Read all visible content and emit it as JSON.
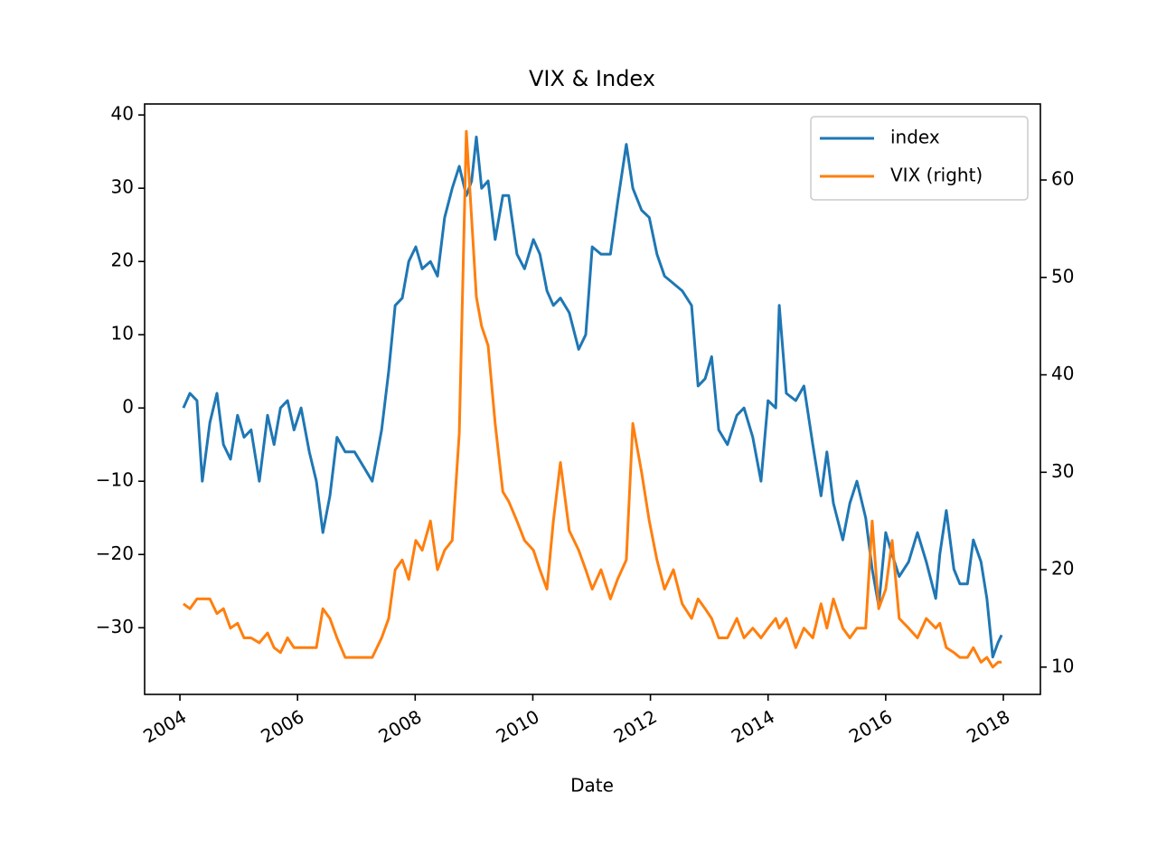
{
  "chart_data": {
    "type": "line",
    "title": "VIX & Index",
    "xlabel": "Date",
    "x": [
      2004.06,
      2004.17,
      2004.29,
      2004.38,
      2004.51,
      2004.63,
      2004.74,
      2004.86,
      2004.98,
      2005.09,
      2005.21,
      2005.35,
      2005.49,
      2005.6,
      2005.71,
      2005.83,
      2005.94,
      2006.06,
      2006.2,
      2006.32,
      2006.43,
      2006.55,
      2006.67,
      2006.81,
      2006.97,
      2007.12,
      2007.27,
      2007.43,
      2007.55,
      2007.66,
      2007.78,
      2007.89,
      2008.01,
      2008.12,
      2008.26,
      2008.38,
      2008.5,
      2008.63,
      2008.75,
      2008.87,
      2008.96,
      2009.04,
      2009.13,
      2009.24,
      2009.36,
      2009.49,
      2009.59,
      2009.73,
      2009.86,
      2010.01,
      2010.12,
      2010.24,
      2010.35,
      2010.47,
      2010.62,
      2010.78,
      2010.9,
      2011.01,
      2011.16,
      2011.32,
      2011.44,
      2011.59,
      2011.7,
      2011.85,
      2011.98,
      2012.11,
      2012.24,
      2012.39,
      2012.54,
      2012.7,
      2012.81,
      2012.93,
      2013.04,
      2013.16,
      2013.31,
      2013.47,
      2013.59,
      2013.74,
      2013.88,
      2014.0,
      2014.13,
      2014.19,
      2014.31,
      2014.47,
      2014.61,
      2014.76,
      2014.9,
      2015.0,
      2015.11,
      2015.27,
      2015.39,
      2015.51,
      2015.66,
      2015.77,
      2015.88,
      2016.0,
      2016.11,
      2016.23,
      2016.39,
      2016.54,
      2016.69,
      2016.85,
      2016.92,
      2017.03,
      2017.16,
      2017.26,
      2017.39,
      2017.49,
      2017.62,
      2017.72,
      2017.82,
      2017.91,
      2017.97
    ],
    "series": [
      {
        "name": "index",
        "color": "#1f77b4",
        "values": [
          0,
          2,
          1,
          -10,
          -2,
          2,
          -5,
          -7,
          -1,
          -4,
          -3,
          -10,
          -1,
          -5,
          0,
          1,
          -3,
          0,
          -6,
          -10,
          -17,
          -12,
          -4,
          -6,
          -6,
          -8,
          -10,
          -3,
          5,
          14,
          15,
          20,
          22,
          19,
          20,
          18,
          26,
          30,
          33,
          29,
          31,
          37,
          30,
          31,
          23,
          29,
          29,
          21,
          19,
          23,
          21,
          16,
          14,
          15,
          13,
          8,
          10,
          22,
          21,
          21,
          28,
          36,
          30,
          27,
          26,
          21,
          18,
          17,
          16,
          14,
          3,
          4,
          7,
          -3,
          -5,
          -1,
          0,
          -4,
          -10,
          1,
          0,
          14,
          2,
          1,
          3,
          -5,
          -12,
          -6,
          -13,
          -18,
          -13,
          -10,
          -15,
          -22,
          -27,
          -17,
          -20,
          -23,
          -21,
          -17,
          -21,
          -26,
          -20,
          -14,
          -22,
          -24,
          -24,
          -18,
          -21,
          -26,
          -34,
          -32,
          -31
        ]
      },
      {
        "name": "VIX (right)",
        "color": "#ff7f0e",
        "axis": "y2",
        "values": [
          16.5,
          16,
          17,
          17,
          17,
          15.5,
          16,
          14,
          14.5,
          13,
          13,
          12.5,
          13.5,
          12,
          11.5,
          13,
          12,
          12,
          12,
          12,
          16,
          15,
          13,
          11,
          11,
          11,
          11,
          13,
          15,
          20,
          21,
          19,
          23,
          22,
          25,
          20,
          22,
          23,
          34,
          65,
          56,
          48,
          45,
          43,
          35,
          28,
          27,
          25,
          23,
          22,
          20,
          18,
          25,
          31,
          24,
          22,
          20,
          18,
          20,
          17,
          19,
          21,
          35,
          30,
          25,
          21,
          18,
          20,
          16.5,
          15,
          17,
          16,
          15,
          13,
          13,
          15,
          13,
          14,
          13,
          14,
          15,
          14,
          15,
          12,
          14,
          13,
          16.5,
          14,
          17,
          14,
          13,
          14,
          14,
          25,
          16,
          18,
          23,
          15,
          14,
          13,
          15,
          14,
          14.5,
          12,
          11.5,
          11,
          11,
          12,
          10.5,
          11,
          10,
          10.5,
          10.5
        ]
      }
    ],
    "xlim": [
      2003.4,
      2018.63
    ],
    "xticks": [
      2004,
      2006,
      2008,
      2010,
      2012,
      2014,
      2016,
      2018
    ],
    "ylim": [
      -39.1,
      41.5
    ],
    "yticks": [
      {
        "value": -30,
        "label": "−30"
      },
      {
        "value": -20,
        "label": "−20"
      },
      {
        "value": -10,
        "label": "−10"
      },
      0,
      10,
      20,
      30,
      40
    ],
    "y2lim": [
      7.2,
      67.8
    ],
    "y2ticks": [
      10,
      20,
      30,
      40,
      50,
      60
    ],
    "legend": "upper right"
  }
}
